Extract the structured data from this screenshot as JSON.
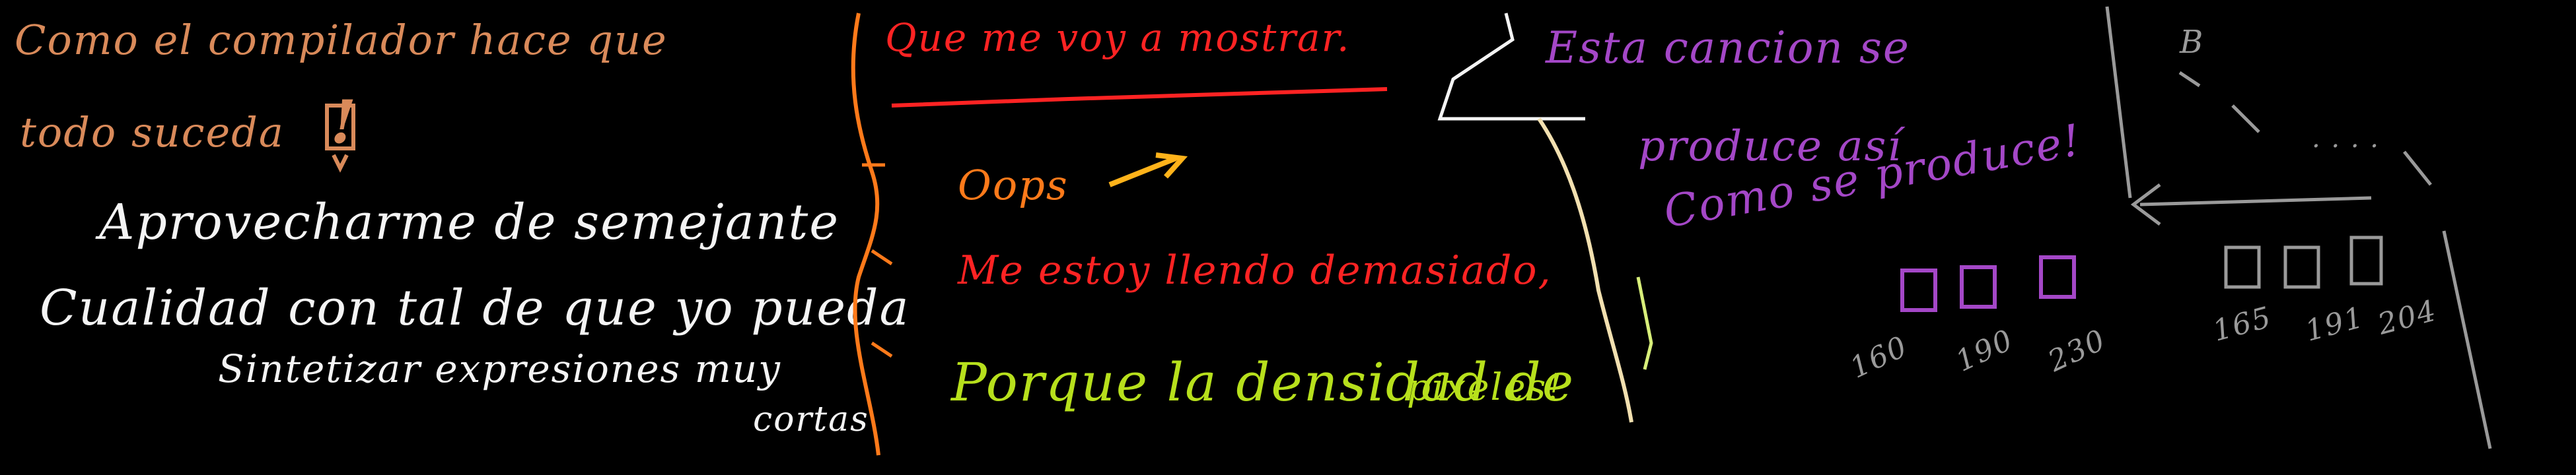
{
  "colors": {
    "background": "#000000",
    "brown": "#d98a5a",
    "white": "#f4f4f4",
    "red": "#ff2323",
    "orange": "#ff7a1a",
    "lime": "#b7e01c",
    "purple": "#a447c7",
    "gray": "#9a9a9a"
  },
  "left": {
    "heading_line1": "Como el compilador hace que",
    "heading_line2": "todo suceda",
    "exclaim": "!",
    "body_line1": "Aprovecharme de semejante",
    "body_line2": "Cualidad con tal de que yo pueda",
    "body_line3": "Sintetizar expresiones muy",
    "body_line4": "cortas"
  },
  "middle": {
    "title": "Que me voy a mostrar.",
    "oops": "Oops",
    "line2": "Me estoy llendo demasiado,",
    "line3": "Porque la densidad de",
    "line4": "pixeles!"
  },
  "right": {
    "line1": "Esta cancion se",
    "line2": "produce así",
    "line3": "Como se produce!",
    "values_purple": [
      "160",
      "190",
      "230"
    ],
    "values_gray": [
      "165",
      "191",
      "204"
    ],
    "gray_mark_letter": "B",
    "gray_dots": ". . . ."
  }
}
